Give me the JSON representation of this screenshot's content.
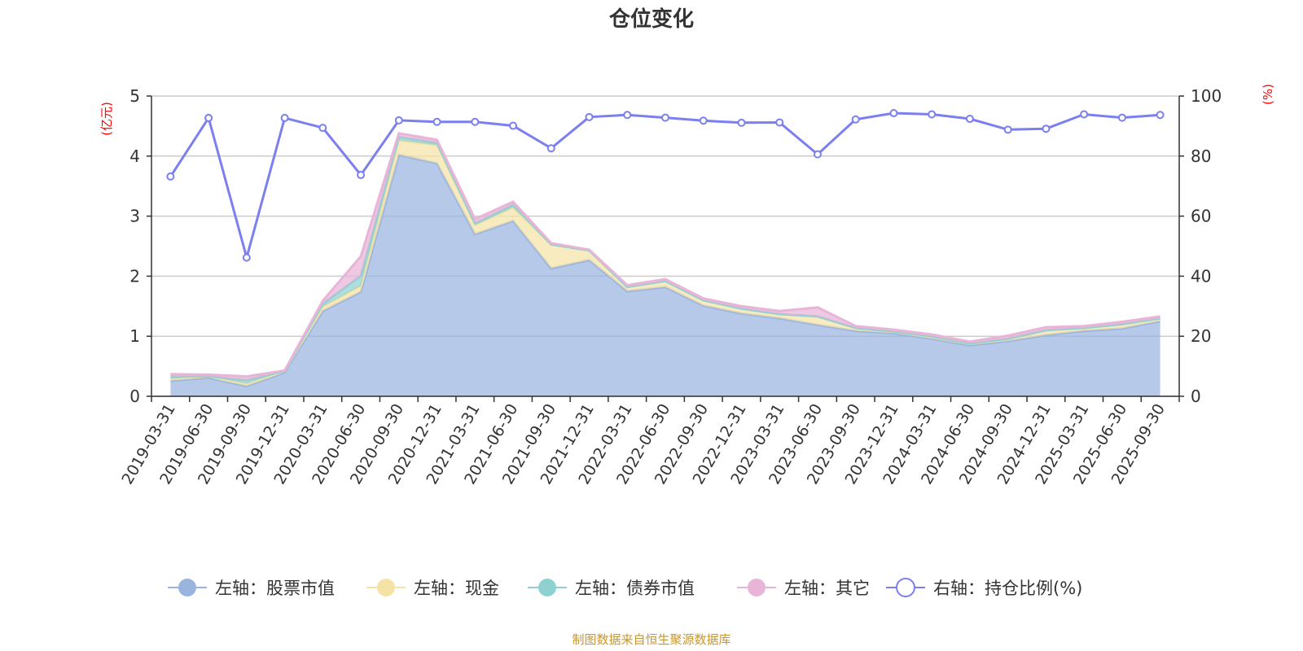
{
  "chart_data": {
    "type": "area",
    "title": "仓位变化",
    "left_axis": {
      "unit_label": "(亿元)",
      "ylim": [
        0,
        5
      ],
      "ticks": [
        "0",
        "1",
        "2",
        "3",
        "4",
        "5"
      ]
    },
    "right_axis": {
      "unit_label": "(%)",
      "ylim": [
        0,
        100
      ],
      "ticks": [
        "0",
        "20",
        "40",
        "60",
        "80",
        "100"
      ]
    },
    "categories": [
      "2019-03-31",
      "2019-06-30",
      "2019-09-30",
      "2019-12-31",
      "2020-03-31",
      "2020-06-30",
      "2020-09-30",
      "2020-12-31",
      "2021-03-31",
      "2021-06-30",
      "2021-09-30",
      "2021-12-31",
      "2022-03-31",
      "2022-06-30",
      "2022-09-30",
      "2022-12-31",
      "2023-03-31",
      "2023-06-30",
      "2023-09-30",
      "2023-12-31",
      "2024-03-31",
      "2024-06-30",
      "2024-09-30",
      "2024-12-31",
      "2025-03-31",
      "2025-06-30",
      "2025-09-30"
    ],
    "stacked_series": [
      {
        "name": "左轴：股票市值",
        "color": "#9ab4e0",
        "values": [
          0.26,
          0.31,
          0.17,
          0.4,
          1.42,
          1.74,
          4.02,
          3.88,
          2.7,
          2.92,
          2.13,
          2.27,
          1.75,
          1.82,
          1.51,
          1.38,
          1.3,
          1.19,
          1.09,
          1.05,
          0.96,
          0.85,
          0.92,
          1.02,
          1.09,
          1.13,
          1.25
        ]
      },
      {
        "name": "左轴：现金",
        "color": "#f5e3a6",
        "values": [
          0.03,
          0.02,
          0.04,
          0.02,
          0.07,
          0.1,
          0.24,
          0.3,
          0.15,
          0.22,
          0.4,
          0.16,
          0.07,
          0.1,
          0.09,
          0.08,
          0.07,
          0.14,
          0.05,
          0.03,
          0.04,
          0.03,
          0.04,
          0.08,
          0.05,
          0.07,
          0.05
        ]
      },
      {
        "name": "左轴：债券市值",
        "color": "#8fd1d1",
        "values": [
          0.04,
          0.0,
          0.06,
          0.0,
          0.05,
          0.17,
          0.06,
          0.04,
          0.03,
          0.05,
          0.0,
          0.0,
          0.0,
          0.0,
          0.0,
          0.0,
          0.0,
          0.0,
          0.0,
          0.0,
          0.0,
          0.0,
          0.0,
          0.0,
          0.0,
          0.0,
          0.0
        ]
      },
      {
        "name": "左轴：其它",
        "color": "#e8b4d8",
        "values": [
          0.04,
          0.03,
          0.06,
          0.01,
          0.05,
          0.32,
          0.06,
          0.05,
          0.07,
          0.05,
          0.02,
          0.01,
          0.03,
          0.03,
          0.03,
          0.04,
          0.05,
          0.15,
          0.03,
          0.03,
          0.03,
          0.03,
          0.05,
          0.05,
          0.03,
          0.04,
          0.03
        ]
      }
    ],
    "line_series": {
      "name": "右轴：持仓比例(%)",
      "color": "#7b7ff0",
      "values": [
        73.2,
        92.7,
        46.2,
        92.7,
        89.4,
        73.7,
        91.9,
        91.4,
        91.4,
        90.1,
        82.6,
        93.0,
        93.7,
        92.8,
        91.8,
        91.1,
        91.2,
        80.6,
        92.2,
        94.3,
        93.9,
        92.4,
        88.8,
        89.1,
        93.9,
        92.8,
        93.7
      ]
    },
    "legend_position": "bottom-center",
    "grid": true
  },
  "legend": [
    {
      "label": "左轴：股票市值",
      "color": "#9ab4e0",
      "filled": true
    },
    {
      "label": "左轴：现金",
      "color": "#f5e3a6",
      "filled": true
    },
    {
      "label": "左轴：债券市值",
      "color": "#8fd1d1",
      "filled": true
    },
    {
      "label": "左轴：其它",
      "color": "#e8b4d8",
      "filled": true
    },
    {
      "label": "右轴：持仓比例(%)",
      "color": "#7b7ff0",
      "filled": false
    }
  ],
  "source_note": "制图数据来自恒生聚源数据库"
}
